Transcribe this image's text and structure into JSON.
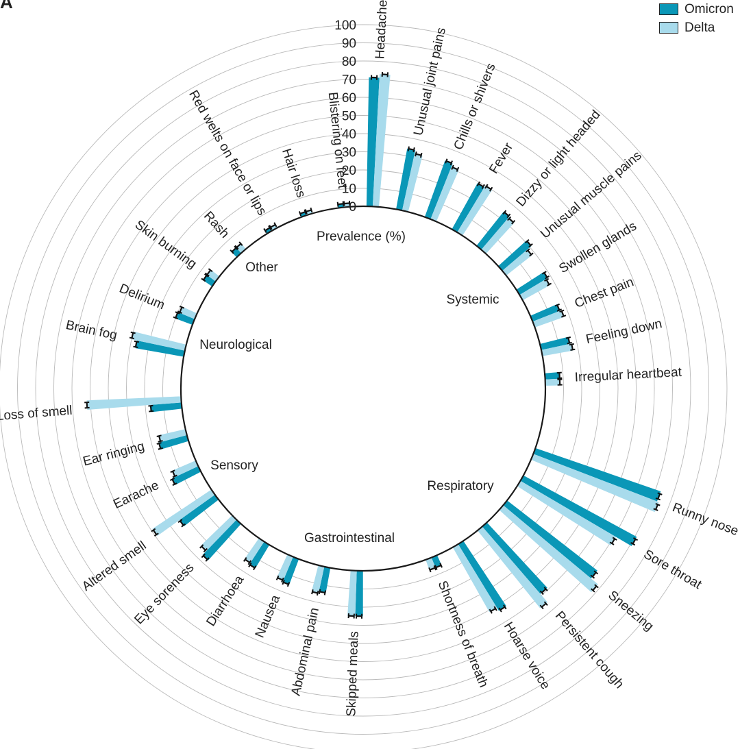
{
  "chart_data": {
    "type": "radial-bar",
    "panel_label": "A",
    "axis_label": "Prevalence (%)",
    "rlim": [
      0,
      100
    ],
    "ticks": [
      "0",
      "10",
      "20",
      "30",
      "40",
      "50",
      "60",
      "70",
      "80",
      "90",
      "100"
    ],
    "tick_values": [
      0,
      10,
      20,
      30,
      40,
      50,
      60,
      70,
      80,
      90,
      100
    ],
    "colors": {
      "Omicron": "#0a97b7",
      "Delta": "#a8dbec"
    },
    "series": [
      {
        "name": "Omicron",
        "color": "#0a97b7"
      },
      {
        "name": "Delta",
        "color": "#a8dbec"
      }
    ],
    "groups": [
      "Systemic",
      "Respiratory",
      "Gastrointestinal",
      "Sensory",
      "Neurological",
      "Other"
    ],
    "symptoms": [
      {
        "name": "Headache",
        "omicron": 71,
        "delta": 73
      },
      {
        "name": "Unusual joint pains",
        "omicron": 34,
        "delta": 32
      },
      {
        "name": "Chills or shivers",
        "omicron": 33,
        "delta": 31
      },
      {
        "name": "Fever",
        "omicron": 29,
        "delta": 30
      },
      {
        "name": "Dizzy or light headed",
        "omicron": 24,
        "delta": 23
      },
      {
        "name": "Unusual muscle pains",
        "omicron": 21,
        "delta": 18
      },
      {
        "name": "Swollen glands",
        "omicron": 18,
        "delta": 17
      },
      {
        "name": "Chest pain",
        "omicron": 16,
        "delta": 17
      },
      {
        "name": "Feeling down",
        "omicron": 16,
        "delta": 17
      },
      {
        "name": "Irregular heartbeat",
        "omicron": 8,
        "delta": 8
      },
      {
        "name": "Runny nose",
        "omicron": 73,
        "delta": 74
      },
      {
        "name": "Sore throat",
        "omicron": 71,
        "delta": 61
      },
      {
        "name": "Sneezing",
        "omicron": 63,
        "delta": 68
      },
      {
        "name": "Persistent cough",
        "omicron": 49,
        "delta": 55
      },
      {
        "name": "Hoarse voice",
        "omicron": 43,
        "delta": 41
      },
      {
        "name": "Shortness of breath",
        "omicron": 6,
        "delta": 6
      },
      {
        "name": "Skipped meals",
        "omicron": 25,
        "delta": 25
      },
      {
        "name": "Abdominal pain",
        "omicron": 14,
        "delta": 15
      },
      {
        "name": "Nausea",
        "omicron": 15,
        "delta": 14
      },
      {
        "name": "Diarrhoea",
        "omicron": 15,
        "delta": 14
      },
      {
        "name": "Eye soreness",
        "omicron": 27,
        "delta": 24
      },
      {
        "name": "Altered smell",
        "omicron": 24,
        "delta": 39
      },
      {
        "name": "Earache",
        "omicron": 16,
        "delta": 14
      },
      {
        "name": "Ear ringing",
        "omicron": 16,
        "delta": 15
      },
      {
        "name": "Loss of smell",
        "omicron": 17,
        "delta": 52
      },
      {
        "name": "Brain fog",
        "omicron": 27,
        "delta": 30
      },
      {
        "name": "Delirium",
        "omicron": 10,
        "delta": 9
      },
      {
        "name": "Skin burning",
        "omicron": 6,
        "delta": 6
      },
      {
        "name": "Rash",
        "omicron": 4,
        "delta": 4
      },
      {
        "name": "Red welts on face or lips",
        "omicron": 2,
        "delta": 2
      },
      {
        "name": "Hair loss",
        "omicron": 2,
        "delta": 2
      },
      {
        "name": "Blistering on feet",
        "omicron": 2,
        "delta": 2
      }
    ]
  }
}
